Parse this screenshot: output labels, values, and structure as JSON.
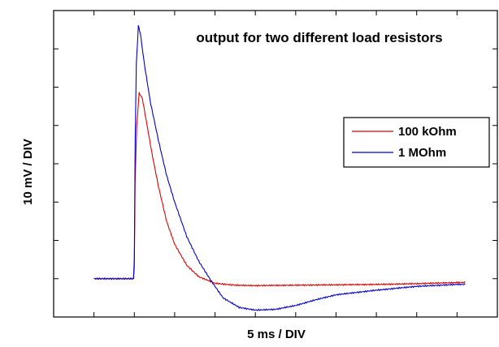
{
  "chart_data": {
    "type": "line",
    "title": "output for two different load resistors",
    "xlabel": "5 ms / DIV",
    "ylabel": "10 mV / DIV",
    "xlim": [
      -1,
      10
    ],
    "ylim": [
      -1,
      7
    ],
    "grid": false,
    "legend_position": "right",
    "series": [
      {
        "name": "100 kOhm",
        "color": "#dd0000",
        "x": [
          0,
          0.5,
          0.98,
          1.0,
          1.02,
          1.06,
          1.12,
          1.2,
          1.3,
          1.45,
          1.6,
          1.8,
          2.0,
          2.3,
          2.6,
          3.0,
          3.5,
          4.0,
          5.0,
          6.0,
          7.0,
          8.0,
          9.0,
          9.2
        ],
        "y": [
          0,
          0,
          0,
          0.3,
          2.5,
          4.0,
          4.85,
          4.7,
          4.1,
          3.2,
          2.4,
          1.5,
          0.9,
          0.35,
          0.05,
          -0.12,
          -0.17,
          -0.18,
          -0.17,
          -0.16,
          -0.15,
          -0.13,
          -0.1,
          -0.1
        ]
      },
      {
        "name": "1 MOhm",
        "color": "#0000cc",
        "x": [
          0,
          0.5,
          0.98,
          1.0,
          1.02,
          1.05,
          1.1,
          1.15,
          1.25,
          1.4,
          1.6,
          1.8,
          2.0,
          2.3,
          2.6,
          2.9,
          3.2,
          3.6,
          4.0,
          4.5,
          5.0,
          5.5,
          6.0,
          7.0,
          8.0,
          9.0,
          9.2
        ],
        "y": [
          0,
          0,
          0,
          0.5,
          3.5,
          5.6,
          6.6,
          6.4,
          5.6,
          4.6,
          3.6,
          2.7,
          2.0,
          1.1,
          0.45,
          -0.05,
          -0.5,
          -0.75,
          -0.82,
          -0.8,
          -0.7,
          -0.55,
          -0.42,
          -0.3,
          -0.2,
          -0.15,
          -0.15
        ]
      }
    ]
  }
}
